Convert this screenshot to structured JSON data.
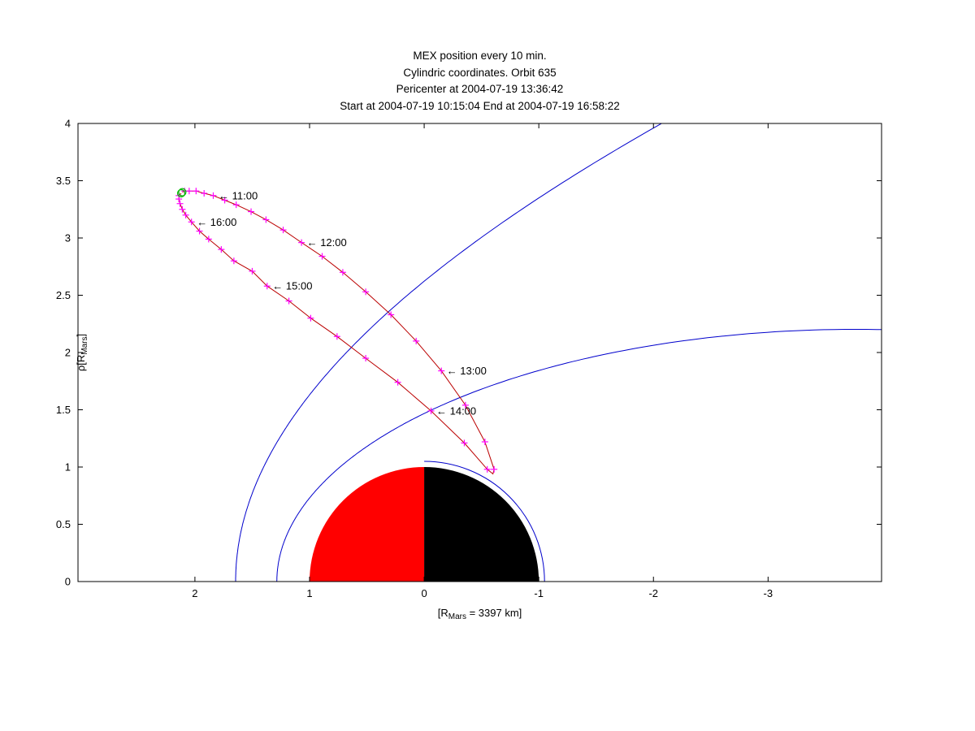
{
  "chart_data": {
    "type": "line",
    "title_lines": [
      "MEX position every 10 min.",
      "Cylindric coordinates. Orbit 635",
      "Pericenter at 2004-07-19 13:36:42",
      "Start at 2004-07-19 10:15:04 End at 2004-07-19 16:58:22"
    ],
    "xlabel": {
      "pre": "[R",
      "sub": "Mars",
      "post": " = 3397 km]"
    },
    "ylabel": {
      "pre": "ρ[R",
      "sub": "Mars",
      "post": "]"
    },
    "x_axis": {
      "max": 3.02,
      "min": -3.99,
      "reversed": true,
      "ticks": [
        2,
        1,
        0,
        -1,
        -2,
        -3
      ]
    },
    "y_axis": {
      "min": 0,
      "max": 4,
      "ticks": [
        0,
        0.5,
        1,
        1.5,
        2,
        2.5,
        3,
        3.5,
        4
      ]
    },
    "colors": {
      "boundary": "#0000cc",
      "orbit": "#bb0000",
      "marker": "#ff00ff",
      "start_end": "#00bb00",
      "planet_day": "#ff0000",
      "planet_night": "#000000",
      "axis": "#000000"
    },
    "planet": {
      "radius": 1
    },
    "boundaries": [
      {
        "name": "bow-shock",
        "x0": 0.64,
        "L": 2.04,
        "ecc": 1.03,
        "theta_max_deg": 126
      },
      {
        "name": "magnetic-pileup-boundary",
        "x0": 0.78,
        "L": 0.96,
        "ecc": 0.9,
        "theta_max_deg": 156
      },
      {
        "name": "nightside-arc",
        "circle_radius": 1.05,
        "phi_start_deg": 90,
        "phi_end_deg": 180
      }
    ],
    "orbit": {
      "marker": "+",
      "interval_min": 10,
      "start": {
        "time": "10:15:04",
        "x": 2.11,
        "rho": 3.4
      },
      "end": {
        "time": "16:58:22",
        "x": 2.12,
        "rho": 3.39
      },
      "points": [
        {
          "t": "10:20",
          "x": 2.09,
          "rho": 3.41
        },
        {
          "t": "10:30",
          "x": 2.05,
          "rho": 3.41
        },
        {
          "t": "10:40",
          "x": 1.99,
          "rho": 3.41
        },
        {
          "t": "10:50",
          "x": 1.92,
          "rho": 3.39
        },
        {
          "t": "11:00",
          "x": 1.84,
          "rho": 3.37
        },
        {
          "t": "11:10",
          "x": 1.74,
          "rho": 3.33
        },
        {
          "t": "11:20",
          "x": 1.64,
          "rho": 3.29
        },
        {
          "t": "11:30",
          "x": 1.51,
          "rho": 3.23
        },
        {
          "t": "11:40",
          "x": 1.38,
          "rho": 3.16
        },
        {
          "t": "11:50",
          "x": 1.23,
          "rho": 3.07
        },
        {
          "t": "12:00",
          "x": 1.07,
          "rho": 2.96
        },
        {
          "t": "12:10",
          "x": 0.89,
          "rho": 2.84
        },
        {
          "t": "12:20",
          "x": 0.71,
          "rho": 2.7
        },
        {
          "t": "12:30",
          "x": 0.51,
          "rho": 2.53
        },
        {
          "t": "12:40",
          "x": 0.29,
          "rho": 2.33
        },
        {
          "t": "12:50",
          "x": 0.07,
          "rho": 2.1
        },
        {
          "t": "13:00",
          "x": -0.15,
          "rho": 1.84
        },
        {
          "t": "13:10",
          "x": -0.36,
          "rho": 1.54
        },
        {
          "t": "13:20",
          "x": -0.53,
          "rho": 1.22
        },
        {
          "t": "13:30",
          "x": -0.61,
          "rho": 0.98
        },
        {
          "t": "13:36:42",
          "x": -0.6,
          "rho": 0.94,
          "pericenter": true
        },
        {
          "t": "13:40",
          "x": -0.55,
          "rho": 0.98
        },
        {
          "t": "13:50",
          "x": -0.35,
          "rho": 1.21
        },
        {
          "t": "14:00",
          "x": -0.06,
          "rho": 1.49
        },
        {
          "t": "14:10",
          "x": 0.23,
          "rho": 1.74
        },
        {
          "t": "14:20",
          "x": 0.51,
          "rho": 1.95
        },
        {
          "t": "14:30",
          "x": 0.76,
          "rho": 2.14
        },
        {
          "t": "14:40",
          "x": 0.99,
          "rho": 2.3
        },
        {
          "t": "14:50",
          "x": 1.18,
          "rho": 2.45
        },
        {
          "t": "15:00",
          "x": 1.37,
          "rho": 2.58
        },
        {
          "t": "15:10",
          "x": 1.5,
          "rho": 2.71
        },
        {
          "t": "15:20",
          "x": 1.66,
          "rho": 2.8
        },
        {
          "t": "15:30",
          "x": 1.77,
          "rho": 2.9
        },
        {
          "t": "15:40",
          "x": 1.88,
          "rho": 2.99
        },
        {
          "t": "15:50",
          "x": 1.96,
          "rho": 3.06
        },
        {
          "t": "16:00",
          "x": 2.03,
          "rho": 3.14
        },
        {
          "t": "16:10",
          "x": 2.08,
          "rho": 3.2
        },
        {
          "t": "16:20",
          "x": 2.11,
          "rho": 3.25
        },
        {
          "t": "16:30",
          "x": 2.13,
          "rho": 3.3
        },
        {
          "t": "16:40",
          "x": 2.14,
          "rho": 3.34
        },
        {
          "t": "16:50",
          "x": 2.14,
          "rho": 3.37
        }
      ],
      "annotations": [
        {
          "t": "11:00",
          "text": "← 11:00"
        },
        {
          "t": "12:00",
          "text": "← 12:00"
        },
        {
          "t": "13:00",
          "text": "← 13:00"
        },
        {
          "t": "14:00",
          "text": "← 14:00"
        },
        {
          "t": "15:00",
          "text": "← 15:00"
        },
        {
          "t": "16:00",
          "text": "← 16:00"
        }
      ]
    }
  }
}
